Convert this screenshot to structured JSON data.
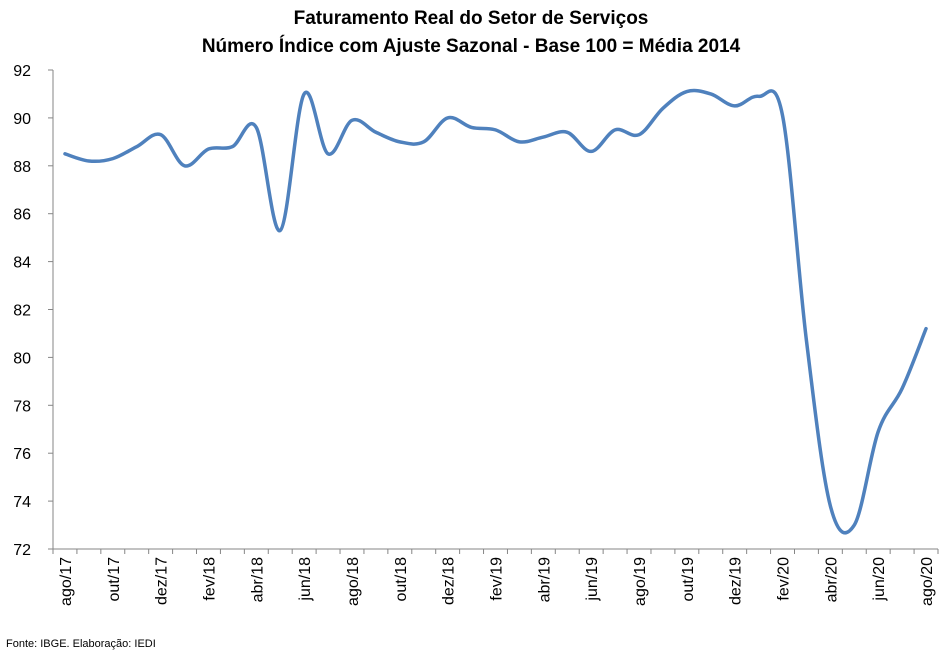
{
  "chart_data": {
    "type": "line",
    "title": "Faturamento Real do Setor de Serviços",
    "subtitle": "Número Índice com Ajuste Sazonal - Base 100 = Média 2014",
    "source": "Fonte: IBGE. Elaboração: IEDI",
    "x": [
      "ago/17",
      "set/17",
      "out/17",
      "nov/17",
      "dez/17",
      "jan/18",
      "fev/18",
      "mar/18",
      "abr/18",
      "mai/18",
      "jun/18",
      "jul/18",
      "ago/18",
      "set/18",
      "out/18",
      "nov/18",
      "dez/18",
      "jan/19",
      "fev/19",
      "mar/19",
      "abr/19",
      "mai/19",
      "jun/19",
      "jul/19",
      "ago/19",
      "set/19",
      "out/19",
      "nov/19",
      "dez/19",
      "jan/20",
      "fev/20",
      "mar/20",
      "abr/20",
      "mai/20",
      "jun/20",
      "jul/20",
      "ago/20"
    ],
    "x_tick_labels": [
      "ago/17",
      "out/17",
      "dez/17",
      "fev/18",
      "abr/18",
      "jun/18",
      "ago/18",
      "out/18",
      "dez/18",
      "fev/19",
      "abr/19",
      "jun/19",
      "ago/19",
      "out/19",
      "dez/19",
      "fev/20",
      "abr/20",
      "jun/20",
      "ago/20"
    ],
    "series": [
      {
        "color": "#4f81bd",
        "values": [
          88.5,
          88.2,
          88.3,
          88.8,
          89.3,
          88.0,
          88.7,
          88.8,
          89.6,
          85.3,
          91.0,
          88.5,
          89.9,
          89.4,
          89.0,
          89.0,
          90.0,
          89.6,
          89.5,
          89.0,
          89.2,
          89.4,
          88.6,
          89.5,
          89.3,
          90.4,
          91.1,
          91.0,
          90.5,
          90.9,
          90.1,
          80.7,
          73.8,
          73.0,
          76.9,
          78.7,
          81.2
        ]
      }
    ],
    "ylim": [
      72,
      92
    ],
    "yticks": [
      72,
      74,
      76,
      78,
      80,
      82,
      84,
      86,
      88,
      90,
      92
    ],
    "grid": false
  }
}
